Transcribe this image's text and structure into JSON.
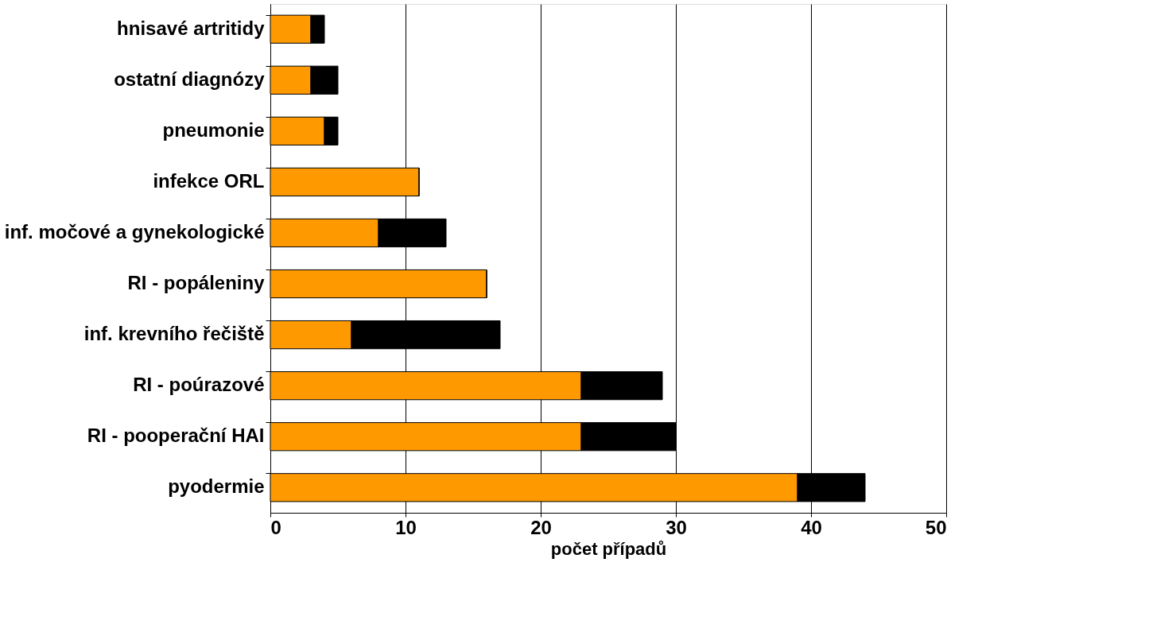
{
  "chart_data": {
    "type": "bar",
    "orientation": "horizontal",
    "stacked": true,
    "xlabel": "počet případů",
    "categories": [
      "hnisavé artritidy",
      "ostatní diagnózy",
      "pneumonie",
      "infekce ORL",
      "inf. močové a gynekologické",
      "RI - popáleniny",
      "inf. krevního řečiště",
      "RI - poúrazové",
      "RI - pooperační HAI",
      "pyodermie"
    ],
    "series": [
      {
        "color": "#ff9900",
        "values": [
          3,
          3,
          4,
          11,
          8,
          16,
          6,
          23,
          23,
          39
        ]
      },
      {
        "color": "#000000",
        "values": [
          1,
          2,
          1,
          0,
          5,
          0,
          11,
          6,
          7,
          5
        ]
      }
    ],
    "xlim": [
      0,
      50
    ],
    "xticks": [
      0,
      10,
      20,
      30,
      40,
      50
    ],
    "grid": "x",
    "legend": false
  }
}
